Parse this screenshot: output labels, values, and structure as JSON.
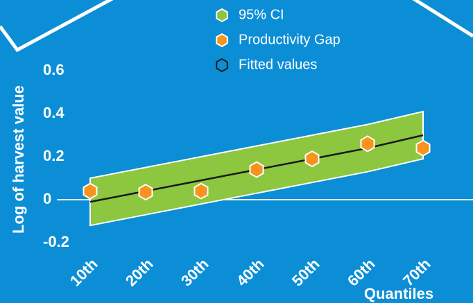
{
  "chart_data": {
    "type": "scatter",
    "y_label": "Log of harvest value",
    "x_label": "Quantiles",
    "x": [
      10,
      20,
      30,
      40,
      50,
      60,
      70
    ],
    "xlim": [
      5,
      79
    ],
    "xticks": [
      {
        "value": 10,
        "label": "10th"
      },
      {
        "value": 20,
        "label": "20th"
      },
      {
        "value": 30,
        "label": "30th"
      },
      {
        "value": 40,
        "label": "40th"
      },
      {
        "value": 50,
        "label": "50th"
      },
      {
        "value": 60,
        "label": "60th"
      },
      {
        "value": 70,
        "label": "70th"
      }
    ],
    "ylim": [
      -0.2,
      0.6
    ],
    "yticks": [
      0.6,
      0.4,
      0.2,
      0,
      -0.2
    ],
    "series": [
      {
        "name": "95% CI",
        "kind": "band",
        "color": "#8dc63f",
        "upper": [
          0.1,
          0.15,
          0.2,
          0.25,
          0.3,
          0.35,
          0.41
        ],
        "lower": [
          -0.12,
          -0.07,
          -0.02,
          0.03,
          0.08,
          0.13,
          0.19
        ]
      },
      {
        "name": "Productivity Gap",
        "kind": "points",
        "color": "#f7941d",
        "values": [
          0.04,
          0.035,
          0.04,
          0.14,
          0.19,
          0.26,
          0.24
        ]
      },
      {
        "name": "Fitted values",
        "kind": "line",
        "color": "#1a1a1a",
        "values": [
          -0.01,
          0.04,
          0.09,
          0.14,
          0.19,
          0.24,
          0.3
        ]
      }
    ]
  }
}
